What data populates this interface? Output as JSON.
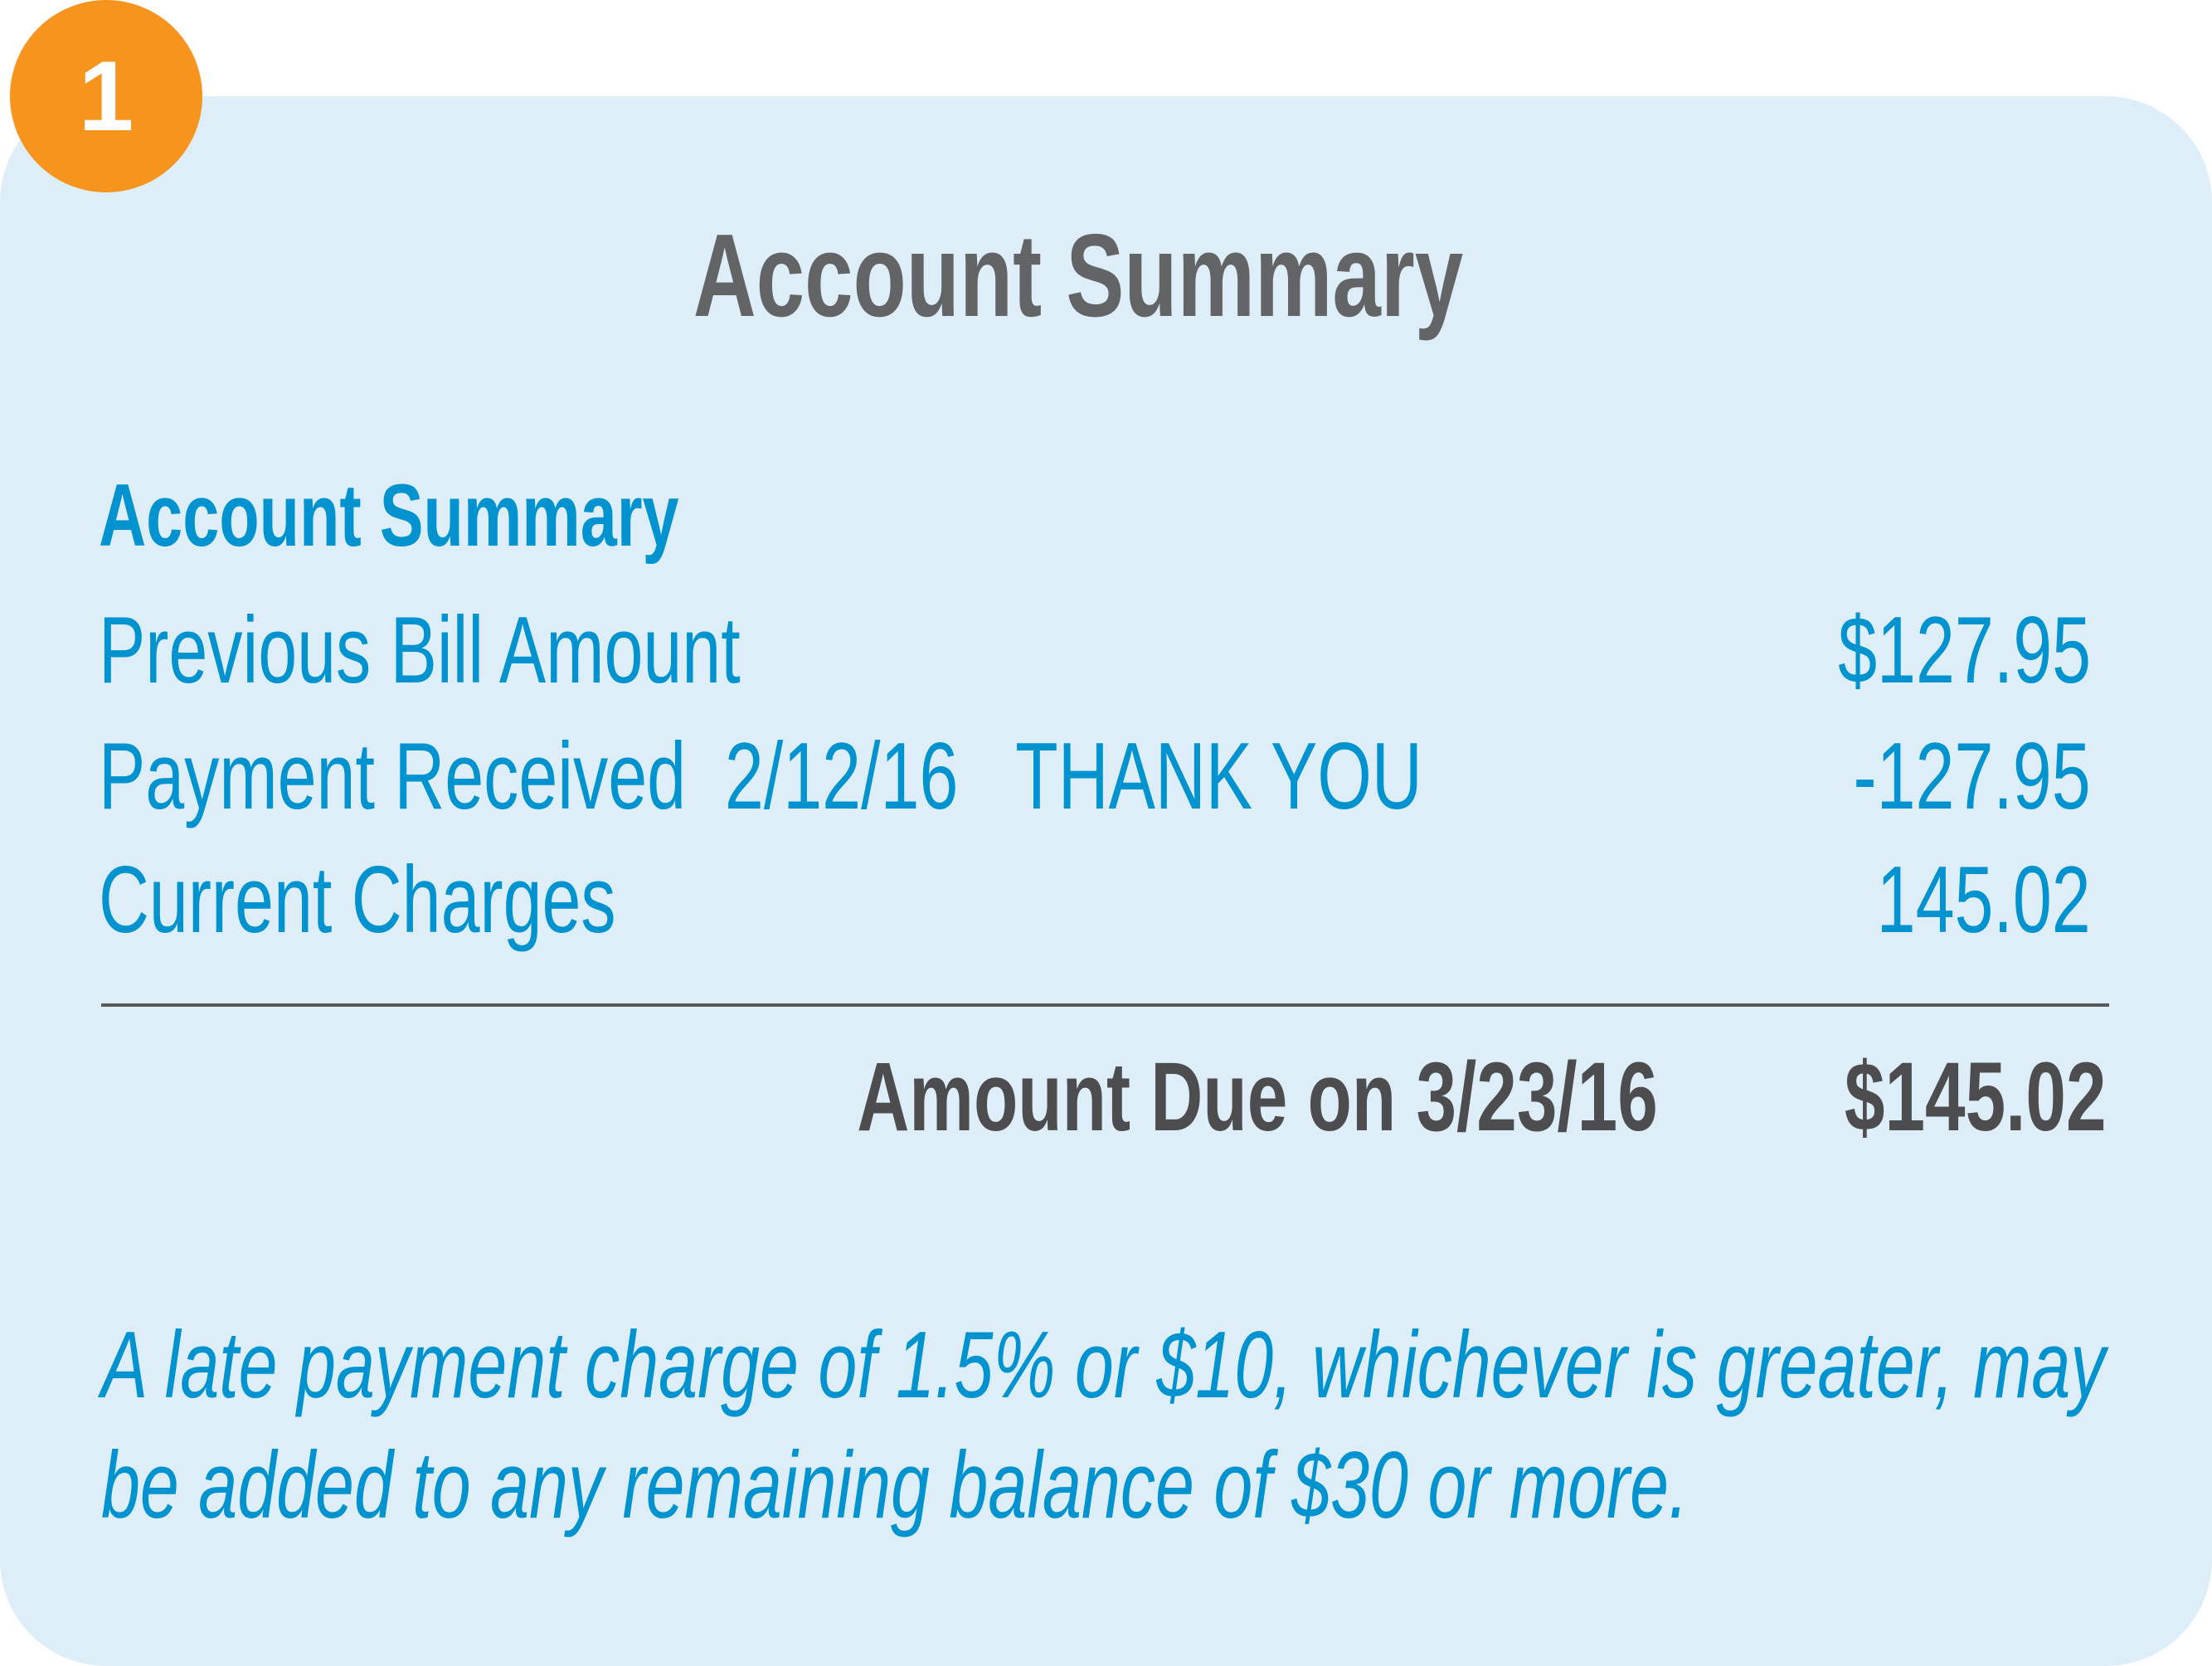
{
  "badge": {
    "number": "1",
    "color": "#F7941D"
  },
  "title": "Account Summary",
  "summary": {
    "heading": "Account Summary",
    "rows": [
      {
        "label": "Previous Bill Amount",
        "value": "$127.95"
      },
      {
        "label": "Payment Received  2/12/16   THANK YOU",
        "value": "-127.95"
      },
      {
        "label": "Current Charges",
        "value": "145.02"
      }
    ],
    "amount_due_label": "Amount Due on 3/23/16",
    "amount_due_value": "$145.02"
  },
  "note": {
    "line1": "A late payment charge of 1.5% or $10, whichever is greater, may",
    "line2": "be added to any remaining balance of $30 or more."
  },
  "colors": {
    "accent": "#0093D0",
    "panel": "#DEEEF8",
    "title": "#636466"
  }
}
